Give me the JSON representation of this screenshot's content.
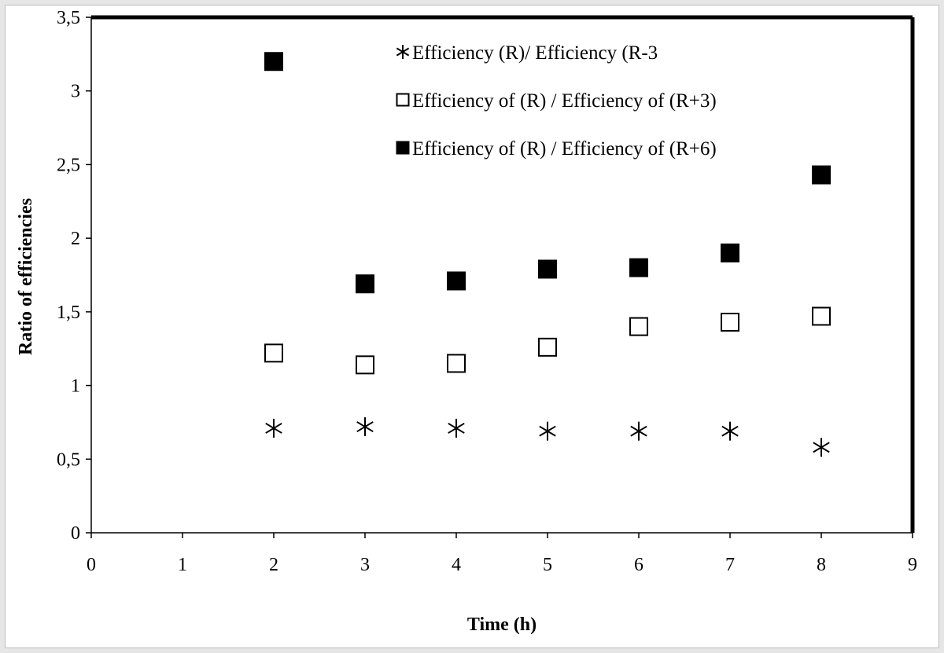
{
  "chart_data": {
    "type": "scatter",
    "title": "",
    "xlabel": "Time (h)",
    "ylabel": "Ratio of efficiencies",
    "xlim": [
      0,
      9
    ],
    "ylim": [
      0,
      3.5
    ],
    "x_ticks": [
      "0",
      "1",
      "2",
      "3",
      "4",
      "5",
      "6",
      "7",
      "8",
      "9"
    ],
    "y_ticks": [
      "0",
      "0,5",
      "1",
      "1,5",
      "2",
      "2,5",
      "3",
      "3,5"
    ],
    "grid": false,
    "legend_position": "top-right",
    "series": [
      {
        "name": "Efficiency (R)/ Efficiency (R-3",
        "marker": "asterisk",
        "points": [
          [
            2,
            0.71
          ],
          [
            3,
            0.72
          ],
          [
            4,
            0.71
          ],
          [
            5,
            0.69
          ],
          [
            6,
            0.69
          ],
          [
            7,
            0.69
          ],
          [
            8,
            0.58
          ]
        ]
      },
      {
        "name": "Efficiency of (R) / Efficiency of (R+3)",
        "marker": "open-square",
        "points": [
          [
            2,
            1.22
          ],
          [
            3,
            1.14
          ],
          [
            4,
            1.15
          ],
          [
            5,
            1.26
          ],
          [
            6,
            1.4
          ],
          [
            7,
            1.43
          ],
          [
            8,
            1.47
          ]
        ]
      },
      {
        "name": "Efficiency of (R) / Efficiency of (R+6)",
        "marker": "filled-square",
        "points": [
          [
            2,
            3.2
          ],
          [
            3,
            1.69
          ],
          [
            4,
            1.71
          ],
          [
            5,
            1.79
          ],
          [
            6,
            1.8
          ],
          [
            7,
            1.9
          ],
          [
            8,
            2.43
          ]
        ]
      }
    ]
  }
}
